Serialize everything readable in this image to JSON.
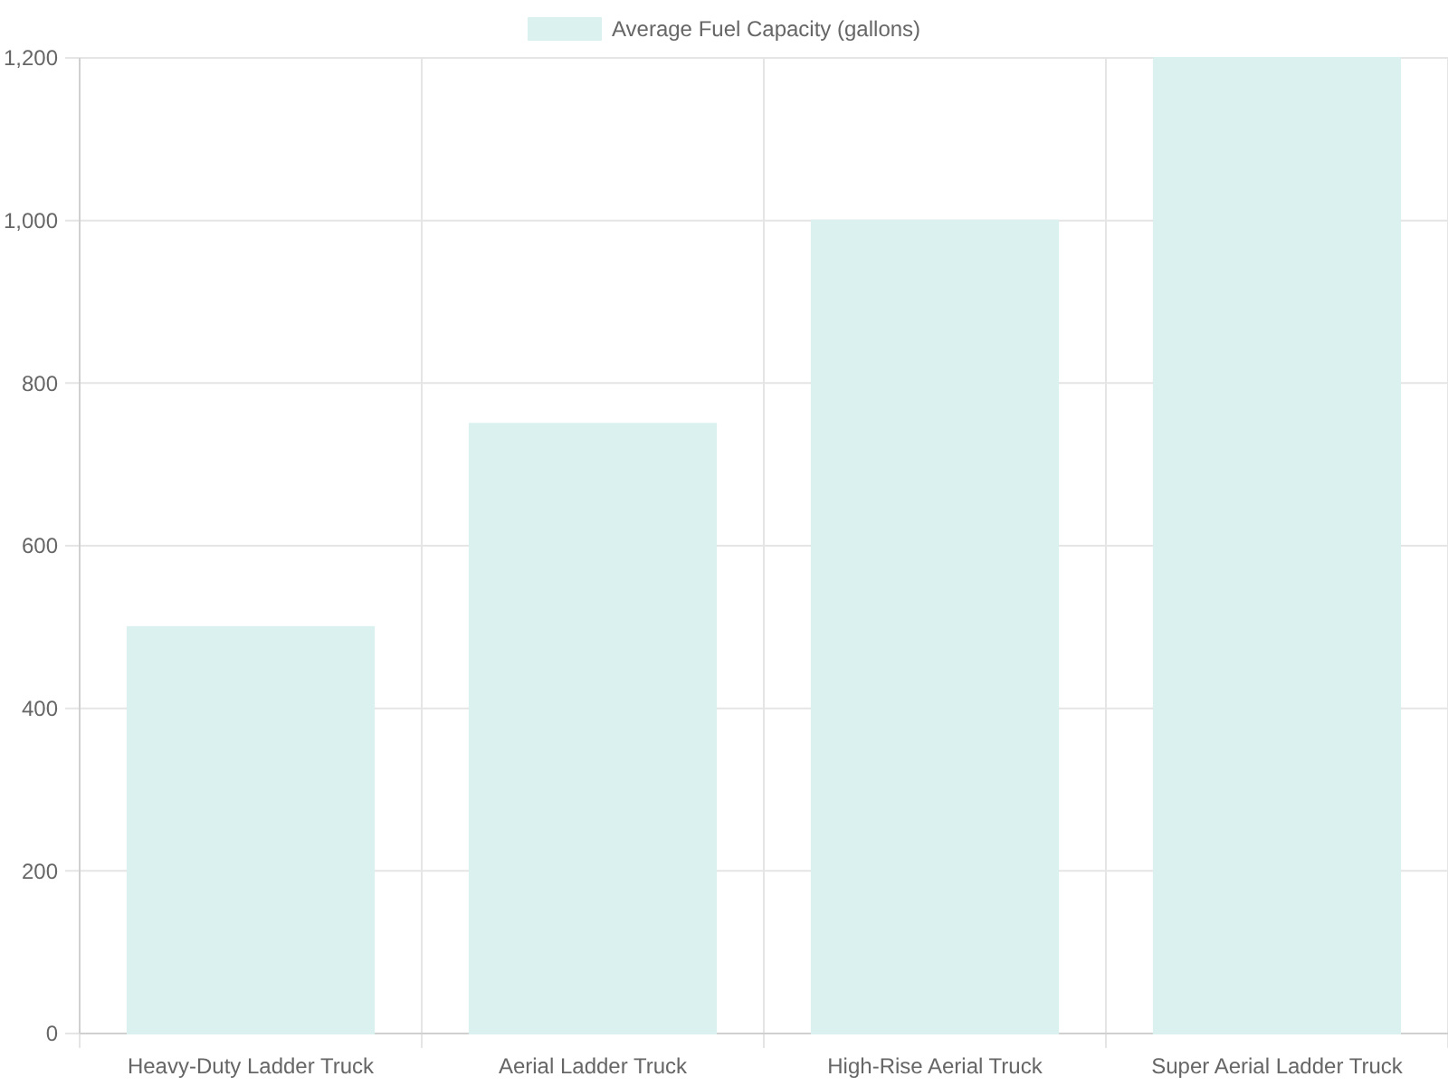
{
  "chart_data": {
    "type": "bar",
    "categories": [
      "Heavy-Duty Ladder Truck",
      "Aerial Ladder Truck",
      "High-Rise Aerial Truck",
      "Super Aerial Ladder Truck"
    ],
    "series": [
      {
        "name": "Average Fuel Capacity (gallons)",
        "color": "#dbf1ef",
        "values": [
          500,
          750,
          1000,
          1200
        ]
      }
    ],
    "ylim": [
      0,
      1200
    ],
    "yticks": [
      0,
      200,
      400,
      600,
      800,
      {
        "value": 1000,
        "label": "1,000"
      },
      {
        "value": 1200,
        "label": "1,200"
      }
    ],
    "grid": true,
    "legend": "top"
  }
}
